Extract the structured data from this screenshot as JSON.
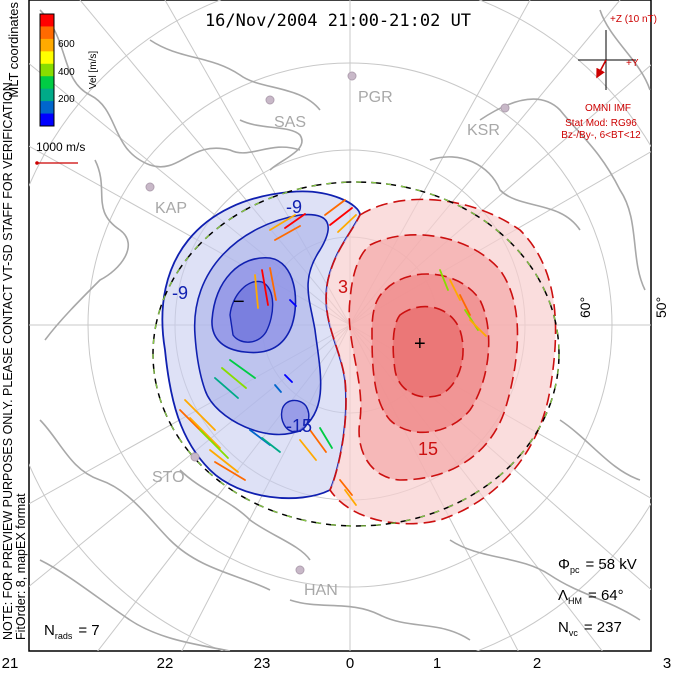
{
  "title": "16/Nov/2004 21:00-21:02 UT",
  "side_note": {
    "line1": "NOTE: FOR PREVIEW PURPOSES ONLY. PLEASE CONTACT VT-SD STAFF FOR VERIFICATION.",
    "line2": "FitOrder: 8, mapEX format"
  },
  "coord_label": "MLT coordinates",
  "colorbar": {
    "title": "Vel [m/s]",
    "ticks": [
      "600",
      "400",
      "200"
    ],
    "colors": [
      "#ff0000",
      "#ff6a00",
      "#ffaa00",
      "#ffff00",
      "#88dd00",
      "#00cc44",
      "#00aa88",
      "#0066cc",
      "#0000ff"
    ]
  },
  "scale_vector": {
    "label": "1000 m/s",
    "color": "#cc0000"
  },
  "imf": {
    "z_label": "+Z (10 nT)",
    "y_label": "+Y",
    "source": "OMNI IMF",
    "model": "Stat Mod: RG96",
    "condition": "Bz-/By-, 6<BT<12",
    "color": "#cc0000"
  },
  "latitude_labels": [
    "60°",
    "50°"
  ],
  "stations": [
    "PGR",
    "SAS",
    "KSR",
    "KAP",
    "STO",
    "HAN"
  ],
  "contour_labels": [
    "-9",
    "-9",
    "3",
    "-15",
    "15"
  ],
  "extrema": {
    "min": "−",
    "max": "+"
  },
  "stats": {
    "phi_sym": "Φ",
    "phi_sub": "pc",
    "phi_value": "= 58 kV",
    "lambda_sym": "Λ",
    "lambda_sub": "HM",
    "lambda_value": "= 64°",
    "nvc_sym": "N",
    "nvc_sub": "vc",
    "nvc_value": "= 237",
    "nrads_sym": "N",
    "nrads_sub": "rads",
    "nrads_value": "= 7"
  },
  "mlt_labels": [
    "21",
    "22",
    "23",
    "0",
    "1",
    "2",
    "3"
  ],
  "colors": {
    "negative": "#1020b0",
    "positive": "#cc1010",
    "land": "#a8a8a8"
  }
}
